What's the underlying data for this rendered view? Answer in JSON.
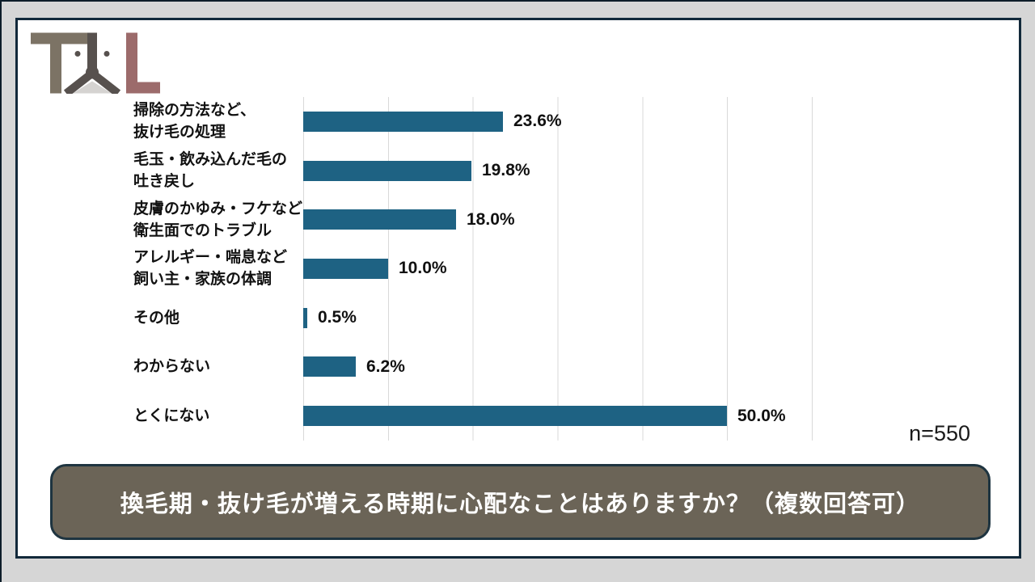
{
  "page": {
    "background_color": "#d6d6d6",
    "slide_background_color": "#ffffff",
    "frame_border_color": "#12293a"
  },
  "logo": {
    "name": "TAL",
    "t_color": "#7c7365",
    "compass_color": "#57514e",
    "triangle_color": "#d5d3d1",
    "l_color": "#9c6b6b"
  },
  "chart_data": {
    "type": "bar",
    "orientation": "horizontal",
    "title": "換毛期・抜け毛が増える時期に心配なことはありますか？（複数回答可）",
    "sample_size_label": "n=550",
    "categories": [
      "掃除の方法など、\n抜け毛の処理",
      "毛玉・飲み込んだ毛の\n吐き戻し",
      "皮膚のかゆみ・フケなど\n衛生面でのトラブル",
      "アレルギー・喘息など\n飼い主・家族の体調",
      "その他",
      "わからない",
      "とくにない"
    ],
    "values": [
      23.6,
      19.8,
      18.0,
      10.0,
      0.5,
      6.2,
      50.0
    ],
    "value_labels": [
      "23.6%",
      "19.8%",
      "18.0%",
      "10.0%",
      "0.5%",
      "6.2%",
      "50.0%"
    ],
    "xlabel": "",
    "ylabel": "",
    "xlim": [
      0,
      60
    ],
    "gridline_interval": 10,
    "grid": true,
    "legend": false,
    "bar_color": "#1e6283",
    "gridline_color": "#d9d9d9"
  },
  "banner": {
    "bg_color": "#6b6457",
    "border_color": "#1e3440",
    "text_color": "#ffffff"
  }
}
